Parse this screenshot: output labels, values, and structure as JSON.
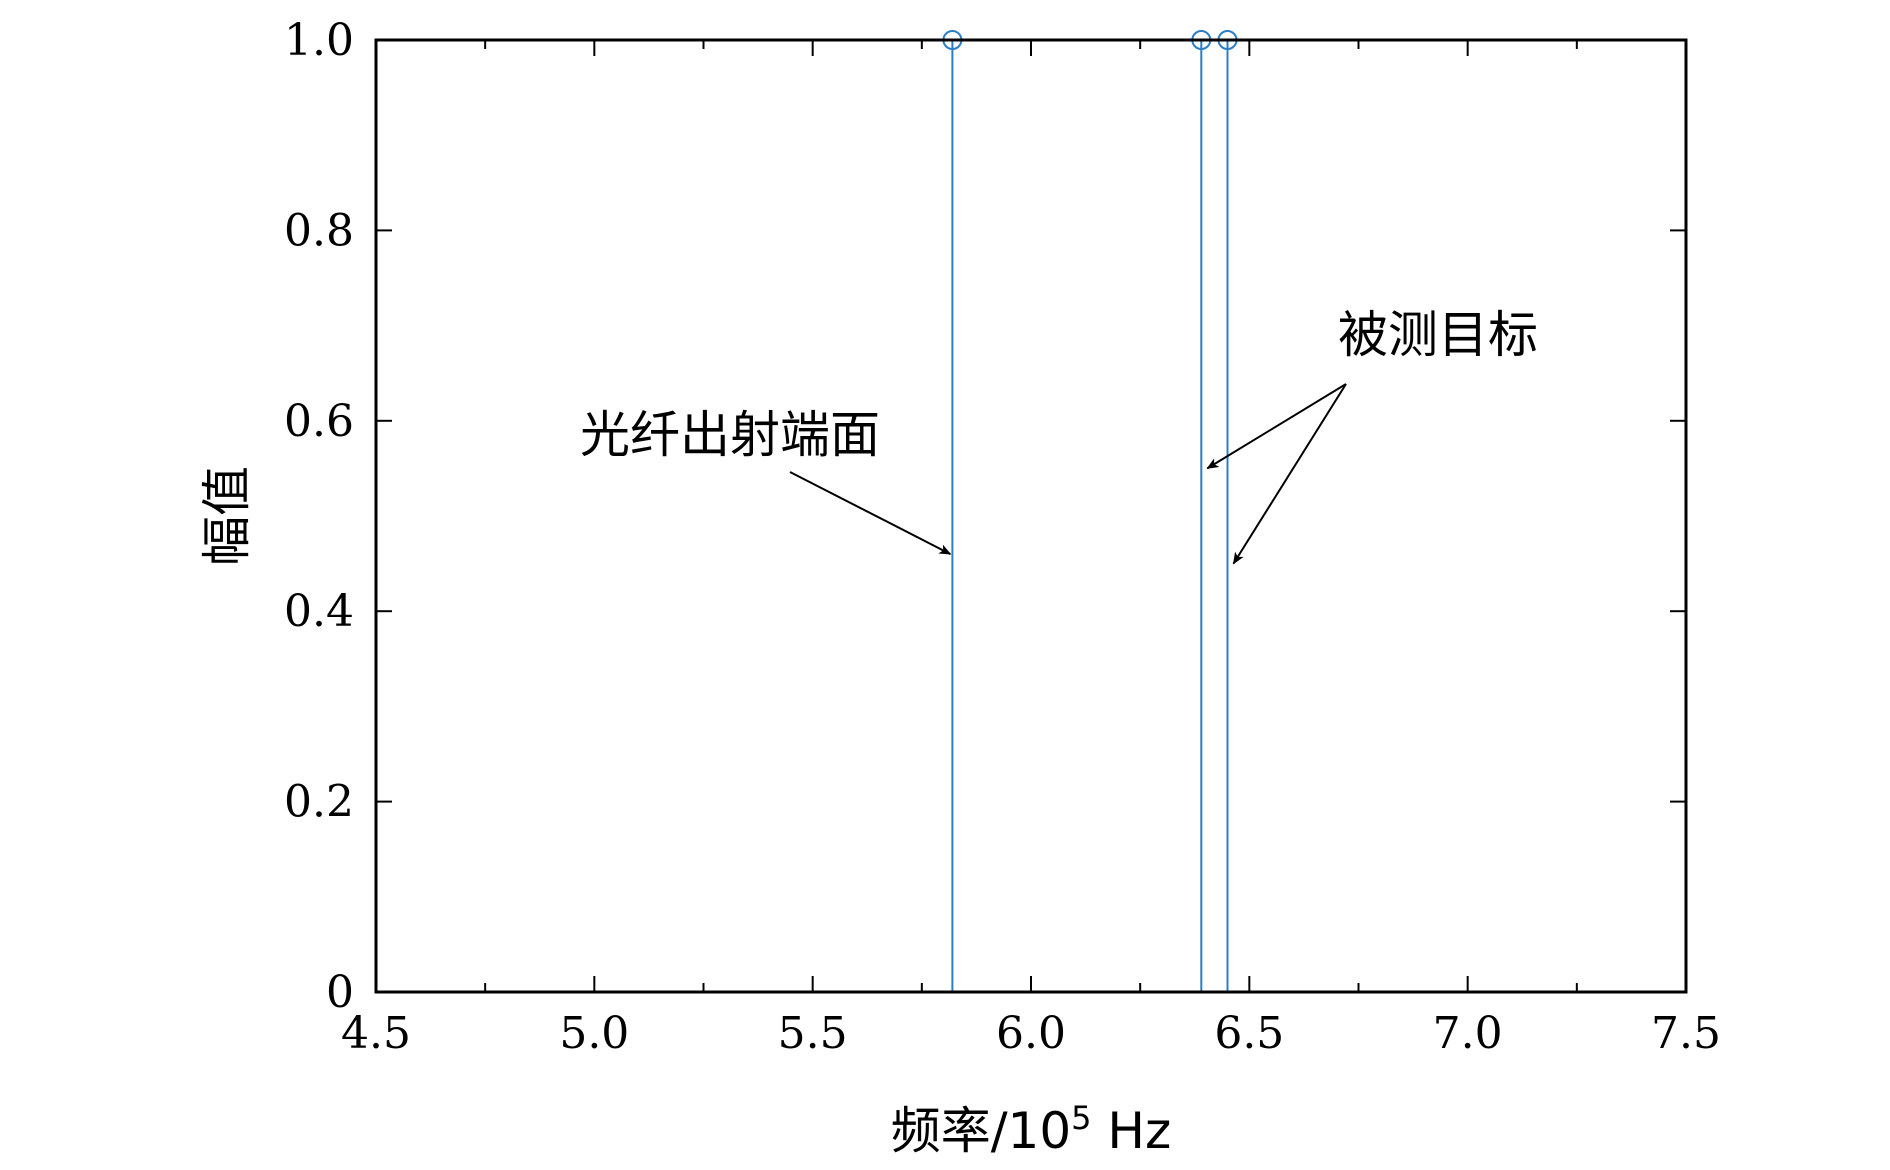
{
  "chart_data": {
    "type": "stem",
    "xlabel": "频率/10",
    "xlabel_exponent": "5",
    "xlabel_unit": " Hz",
    "ylabel": "幅值",
    "xlim": [
      4.5,
      7.5
    ],
    "ylim": [
      0,
      1.0
    ],
    "xticks": [
      4.5,
      5.0,
      5.5,
      6.0,
      6.5,
      7.0,
      7.5
    ],
    "xtick_labels": [
      "4.5",
      "5.0",
      "5.5",
      "6.0",
      "6.5",
      "7.0",
      "7.5"
    ],
    "xminor_ticks": [
      4.75,
      5.25,
      5.75,
      6.25,
      6.75,
      7.25
    ],
    "yticks": [
      0,
      0.2,
      0.4,
      0.6,
      0.8,
      1.0
    ],
    "ytick_labels": [
      "0",
      "0.2",
      "0.4",
      "0.6",
      "0.8",
      "1.0"
    ],
    "grid": false,
    "series": [
      {
        "color": "#2b7fc8",
        "x": [
          5.82,
          6.39,
          6.45
        ],
        "y": [
          1.0,
          1.0,
          1.0
        ]
      }
    ],
    "annotations": [
      {
        "text": "光纤出射端面",
        "point_to": [
          [
            5.82,
            0.46
          ]
        ]
      },
      {
        "text": "被测目标",
        "point_to": [
          [
            6.39,
            0.55
          ],
          [
            6.45,
            0.45
          ]
        ]
      }
    ]
  }
}
